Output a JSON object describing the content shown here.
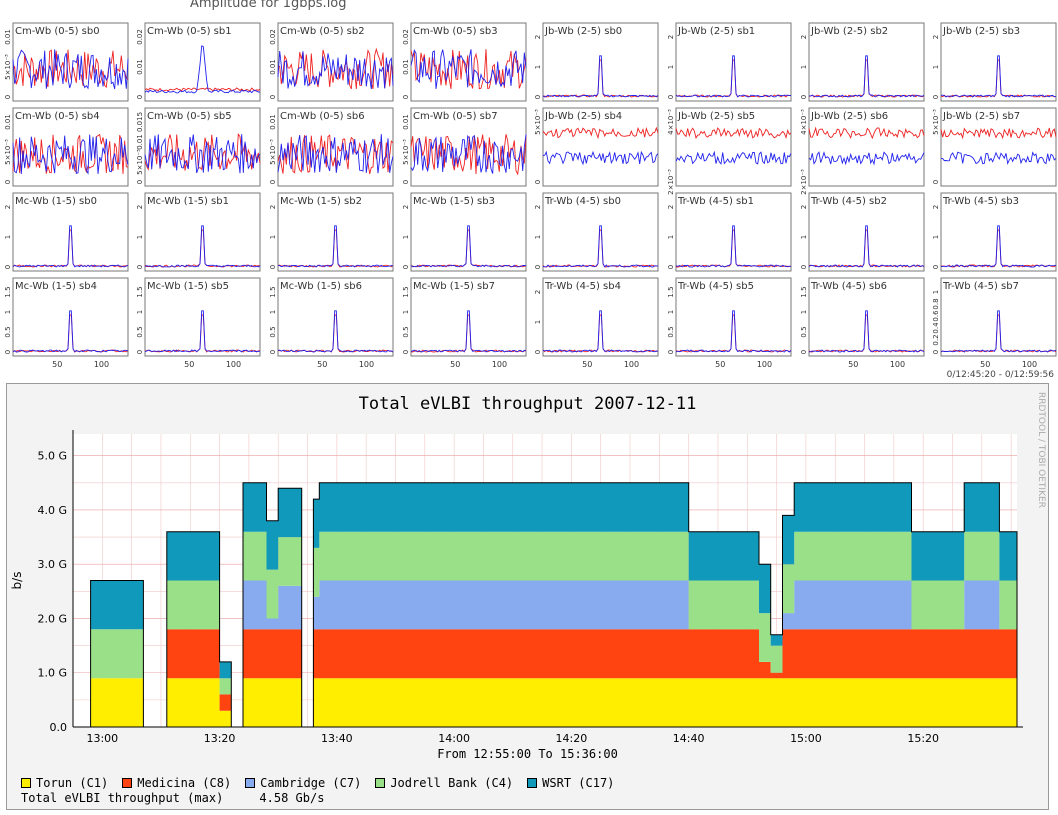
{
  "amplitude": {
    "title": "Amplitude for 1gbps.log",
    "time_range": "0/12:45:20 - 0/12:59:56",
    "x_ticks": [
      50,
      100
    ],
    "series_colors": {
      "a": "#ee2222",
      "b": "#2222ee"
    },
    "panels": [
      {
        "label": "Cm-Wb (0-5)  sb0",
        "y_ticks": [
          "0",
          "5×10⁻³",
          "0.01"
        ],
        "kind": "noise"
      },
      {
        "label": "Cm-Wb (0-5)  sb1",
        "y_ticks": [
          "0",
          "0.01",
          "0.02"
        ],
        "kind": "bump"
      },
      {
        "label": "Cm-Wb (0-5)  sb2",
        "y_ticks": [
          "0",
          "0.01",
          "0.02"
        ],
        "kind": "noise"
      },
      {
        "label": "Cm-Wb (0-5)  sb3",
        "y_ticks": [
          "0",
          "0.01",
          "0.02"
        ],
        "kind": "noise"
      },
      {
        "label": "Jb-Wb (2-5)  sb0",
        "y_ticks": [
          "0",
          "1",
          "2"
        ],
        "kind": "peak"
      },
      {
        "label": "Jb-Wb (2-5)  sb1",
        "y_ticks": [
          "0",
          "1",
          "2"
        ],
        "kind": "peak"
      },
      {
        "label": "Jb-Wb (2-5)  sb2",
        "y_ticks": [
          "0",
          "1",
          "2"
        ],
        "kind": "peak"
      },
      {
        "label": "Jb-Wb (2-5)  sb3",
        "y_ticks": [
          "0",
          "1",
          "2"
        ],
        "kind": "peak"
      },
      {
        "label": "Cm-Wb (0-5)  sb4",
        "y_ticks": [
          "0",
          "5×10⁻³",
          "0.01"
        ],
        "kind": "noise"
      },
      {
        "label": "Cm-Wb (0-5)  sb5",
        "y_ticks": [
          "0",
          "5×10⁻³",
          "0.01",
          "0.015"
        ],
        "kind": "noise"
      },
      {
        "label": "Cm-Wb (0-5)  sb6",
        "y_ticks": [
          "0",
          "5×10⁻³",
          "0.01"
        ],
        "kind": "noise"
      },
      {
        "label": "Cm-Wb (0-5)  sb7",
        "y_ticks": [
          "0",
          "5×10⁻³",
          "0.01"
        ],
        "kind": "noise"
      },
      {
        "label": "Jb-Wb (2-5)  sb4",
        "y_ticks": [
          "0",
          "5×10⁻³"
        ],
        "kind": "bands"
      },
      {
        "label": "Jb-Wb (2-5)  sb5",
        "y_ticks": [
          "2×10⁻³",
          "4×10⁻³"
        ],
        "kind": "bands"
      },
      {
        "label": "Jb-Wb (2-5)  sb6",
        "y_ticks": [
          "2×10⁻³",
          "4×10⁻³"
        ],
        "kind": "bands"
      },
      {
        "label": "Jb-Wb (2-5)  sb7",
        "y_ticks": [
          "0",
          "5×10⁻³"
        ],
        "kind": "bands"
      },
      {
        "label": "Mc-Wb (1-5)  sb0",
        "y_ticks": [
          "0",
          "1",
          "2"
        ],
        "kind": "peak"
      },
      {
        "label": "Mc-Wb (1-5)  sb1",
        "y_ticks": [
          "0",
          "1",
          "2"
        ],
        "kind": "peak"
      },
      {
        "label": "Mc-Wb (1-5)  sb2",
        "y_ticks": [
          "0",
          "1",
          "2"
        ],
        "kind": "peak"
      },
      {
        "label": "Mc-Wb (1-5)  sb3",
        "y_ticks": [
          "0",
          "1",
          "2"
        ],
        "kind": "peak"
      },
      {
        "label": "Tr-Wb (4-5)  sb0",
        "y_ticks": [
          "0",
          "1",
          "2"
        ],
        "kind": "peak"
      },
      {
        "label": "Tr-Wb (4-5)  sb1",
        "y_ticks": [
          "0",
          "1",
          "2"
        ],
        "kind": "peak"
      },
      {
        "label": "Tr-Wb (4-5)  sb2",
        "y_ticks": [
          "0",
          "1",
          "2"
        ],
        "kind": "peak"
      },
      {
        "label": "Tr-Wb (4-5)  sb3",
        "y_ticks": [
          "0",
          "1",
          "2"
        ],
        "kind": "peak"
      },
      {
        "label": "Mc-Wb (1-5)  sb4",
        "y_ticks": [
          "0",
          "0.5",
          "1",
          "1.5"
        ],
        "kind": "peak"
      },
      {
        "label": "Mc-Wb (1-5)  sb5",
        "y_ticks": [
          "0",
          "0.5",
          "1",
          "1.5"
        ],
        "kind": "peak"
      },
      {
        "label": "Mc-Wb (1-5)  sb6",
        "y_ticks": [
          "0",
          "0.5",
          "1",
          "1.5"
        ],
        "kind": "peak"
      },
      {
        "label": "Mc-Wb (1-5)  sb7",
        "y_ticks": [
          "0",
          "0.5",
          "1",
          "1.5"
        ],
        "kind": "peak"
      },
      {
        "label": "Tr-Wb (4-5)  sb4",
        "y_ticks": [
          "0",
          "1",
          "2"
        ],
        "kind": "peak"
      },
      {
        "label": "Tr-Wb (4-5)  sb5",
        "y_ticks": [
          "0",
          "0.5",
          "1",
          "1.5"
        ],
        "kind": "peak"
      },
      {
        "label": "Tr-Wb (4-5)  sb6",
        "y_ticks": [
          "0",
          "0.5",
          "1",
          "1.5"
        ],
        "kind": "peak"
      },
      {
        "label": "Tr-Wb (4-5)  sb7",
        "y_ticks": [
          "0",
          "0.2",
          "0.4",
          "0.6",
          "0.8",
          "1"
        ],
        "kind": "peak"
      }
    ]
  },
  "rrd": {
    "title": "Total eVLBI throughput 2007-12-11",
    "ylabel": "b/s",
    "watermark": "RRDTOOL / TOBI OETIKER",
    "from_to": "From 12:55:00 To 15:36:00",
    "max_label": "Total eVLBI throughput (max)",
    "max_value": "4.58 Gb/s"
  },
  "chart_data": {
    "type": "area",
    "title": "Total eVLBI throughput 2007-12-11",
    "xlabel": "From 12:55:00 To 15:36:00",
    "ylabel": "b/s",
    "ylim": [
      0,
      5.4
    ],
    "y_unit": "G",
    "y_ticks": [
      "0.0",
      "1.0 G",
      "2.0 G",
      "3.0 G",
      "4.0 G",
      "5.0 G"
    ],
    "x_ticks": [
      "13:00",
      "13:20",
      "13:40",
      "14:00",
      "14:20",
      "14:40",
      "15:00",
      "15:20"
    ],
    "x": [
      "12:55",
      "12:58",
      "13:03",
      "13:07",
      "13:11",
      "13:17",
      "13:20",
      "13:22",
      "13:24",
      "13:26",
      "13:28",
      "13:30",
      "13:31",
      "13:32",
      "13:34",
      "13:36",
      "13:37",
      "13:39",
      "13:40",
      "13:44",
      "13:48",
      "13:52",
      "14:00",
      "14:10",
      "14:20",
      "14:30",
      "14:38",
      "14:40",
      "14:46",
      "14:50",
      "14:52",
      "14:54",
      "14:56",
      "14:58",
      "15:00",
      "15:03",
      "15:05",
      "15:08",
      "15:10",
      "15:15",
      "15:18",
      "15:20",
      "15:23",
      "15:25",
      "15:27",
      "15:30",
      "15:33",
      "15:36"
    ],
    "series": [
      {
        "name": "Torun (C1)",
        "color": "#ffee00",
        "values": [
          0,
          0.9,
          0.9,
          0,
          0.9,
          0.9,
          0.3,
          0,
          0.9,
          0.9,
          0.9,
          0.9,
          0.9,
          0.9,
          0,
          0.9,
          0.9,
          0.9,
          0.9,
          0.9,
          0.9,
          0.9,
          0.9,
          0.9,
          0.9,
          0.9,
          0.9,
          0.9,
          0.9,
          0.9,
          0.9,
          0.9,
          0.9,
          0.9,
          0.9,
          0.9,
          0.9,
          0.9,
          0.9,
          0.9,
          0.9,
          0.9,
          0.9,
          0.9,
          0.9,
          0.9,
          0.9,
          0
        ]
      },
      {
        "name": "Medicina (C8)",
        "color": "#ff4411",
        "values": [
          0,
          0,
          0,
          0,
          0.9,
          0.9,
          0.3,
          0,
          0.9,
          0.9,
          0.9,
          0.9,
          0.9,
          0.9,
          0,
          0.9,
          0.9,
          0.9,
          0.9,
          0.9,
          0.9,
          0.9,
          0.9,
          0.9,
          0.9,
          0.9,
          0.9,
          0.9,
          0.9,
          0.9,
          0.3,
          0.1,
          0.9,
          0.9,
          0.9,
          0.9,
          0.9,
          0.9,
          0.9,
          0.9,
          0.9,
          0.9,
          0.9,
          0.9,
          0.9,
          0.9,
          0.9,
          0
        ]
      },
      {
        "name": "Cambridge (C7)",
        "color": "#88aaee",
        "values": [
          0,
          0,
          0,
          0,
          0,
          0,
          0,
          0,
          0.9,
          0.9,
          0.2,
          0.8,
          0.8,
          0.8,
          0,
          0.6,
          0.9,
          0.9,
          0.9,
          0.9,
          0.9,
          0.9,
          0.9,
          0.9,
          0.9,
          0.9,
          0.9,
          0,
          0,
          0,
          0,
          0,
          0.3,
          0.9,
          0.9,
          0.9,
          0.9,
          0.9,
          0.9,
          0.9,
          0,
          0,
          0,
          0,
          0.9,
          0.9,
          0,
          0
        ]
      },
      {
        "name": "Jodrell Bank (C4)",
        "color": "#99e088",
        "values": [
          0,
          0.9,
          0.9,
          0,
          0.9,
          0.9,
          0.3,
          0,
          0.9,
          0.9,
          0.9,
          0.9,
          0.9,
          0.9,
          0,
          0.9,
          0.9,
          0.9,
          0.9,
          0.9,
          0.9,
          0.9,
          0.9,
          0.9,
          0.9,
          0.9,
          0.9,
          0.9,
          0.9,
          0.9,
          0.9,
          0.5,
          0.9,
          0.9,
          0.9,
          0.9,
          0.9,
          0.9,
          0.9,
          0.9,
          0.9,
          0.9,
          0.9,
          0.9,
          0.9,
          0.9,
          0.9,
          0
        ]
      },
      {
        "name": "WSRT (C17)",
        "color": "#1199bb",
        "values": [
          0,
          0.9,
          0.9,
          0,
          0.9,
          0.9,
          0.3,
          0,
          0.9,
          0.9,
          0.9,
          0.9,
          0.9,
          0.9,
          0,
          0.9,
          0.9,
          0.9,
          0.9,
          0.9,
          0.9,
          0.9,
          0.9,
          0.9,
          0.9,
          0.9,
          0.9,
          0.9,
          0.9,
          0.9,
          0.9,
          0.2,
          0.9,
          0.9,
          0.9,
          0.9,
          0.9,
          0.9,
          0.9,
          0.9,
          0.9,
          0.9,
          0.9,
          0.9,
          0.9,
          0.9,
          0.9,
          0
        ]
      }
    ],
    "legend": [
      {
        "name": "Torun (C1)",
        "color": "#ffee00"
      },
      {
        "name": "Medicina (C8)",
        "color": "#ff4411"
      },
      {
        "name": "Cambridge (C7)",
        "color": "#88aaee"
      },
      {
        "name": "Jodrell Bank (C4)",
        "color": "#99e088"
      },
      {
        "name": "WSRT (C17)",
        "color": "#1199bb"
      }
    ],
    "grid": true,
    "legend_position": "bottom-left"
  }
}
